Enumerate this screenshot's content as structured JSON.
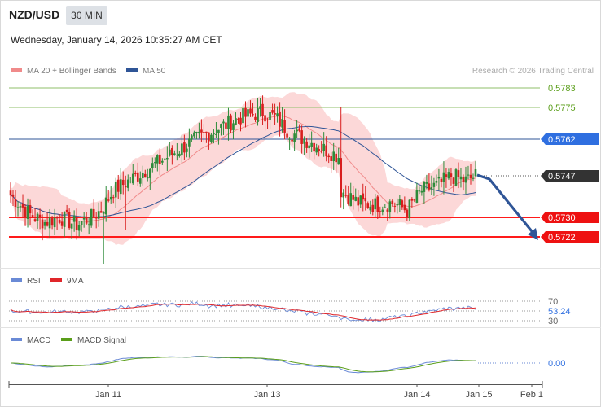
{
  "header": {
    "pair": "NZD/USD",
    "interval": "30 MIN",
    "datetime": "Wednesday, January 14, 2026 10:35:27 AM CET"
  },
  "legend": {
    "ma20_bb": "MA 20 + Bollinger Bands",
    "ma50": "MA 50",
    "rsi": "RSI",
    "rsi_ma": "9MA",
    "macd": "MACD",
    "macd_signal": "MACD Signal"
  },
  "copyright": "Research © 2026 Trading Central",
  "colors": {
    "up": "#2e8b3a",
    "down": "#d81e1e",
    "bb_fill": "#fcd8d8",
    "ma20": "#f08a8a",
    "ma50": "#2f5597",
    "target_line": "#8fbf6a",
    "key_level": "#2f5597",
    "support": "#ff1a1a",
    "arrow": "#2f5597",
    "rsi": "#6a8ad6",
    "rsi_ma": "#e0262a",
    "macd": "#6a8ad6",
    "macd_signal": "#5a9e1a"
  },
  "chart_data": [
    {
      "type": "candlestick",
      "title": "NZD/USD 30 MIN",
      "ylim": [
        0.5706,
        0.579
      ],
      "x_ticks": [
        "Jan 11",
        "Jan 13",
        "Jan 14",
        "Jan 15",
        "Feb 1"
      ],
      "price_levels": [
        {
          "value": 0.5783,
          "label": "0.5783",
          "kind": "target"
        },
        {
          "value": 0.5775,
          "label": "0.5775",
          "kind": "target"
        },
        {
          "value": 0.5762,
          "label": "0.5762",
          "kind": "pivot"
        },
        {
          "value": 0.573,
          "label": "0.5730",
          "kind": "support"
        },
        {
          "value": 0.5722,
          "label": "0.5722",
          "kind": "support"
        }
      ],
      "last_price": {
        "value": 0.5747,
        "label": "0.5747"
      },
      "scenario_arrow": {
        "from_price": 0.5747,
        "to_price": 0.5722
      },
      "series": [
        {
          "name": "MA 20 + Bollinger Bands",
          "kind": "band"
        },
        {
          "name": "MA 50",
          "kind": "line"
        }
      ],
      "close_anchors": [
        [
          0,
          0.5739
        ],
        [
          8,
          0.5731
        ],
        [
          14,
          0.5728
        ],
        [
          20,
          0.573
        ],
        [
          27,
          0.5727
        ],
        [
          33,
          0.573
        ],
        [
          37,
          0.5733
        ],
        [
          42,
          0.5741
        ],
        [
          50,
          0.5746
        ],
        [
          58,
          0.5751
        ],
        [
          66,
          0.5756
        ],
        [
          74,
          0.5761
        ],
        [
          84,
          0.5766
        ],
        [
          94,
          0.5771
        ],
        [
          103,
          0.5773
        ],
        [
          108,
          0.5771
        ],
        [
          114,
          0.5765
        ],
        [
          120,
          0.5762
        ],
        [
          124,
          0.576
        ],
        [
          130,
          0.5757
        ],
        [
          134,
          0.5755
        ],
        [
          135,
          0.5741
        ],
        [
          142,
          0.5736
        ],
        [
          150,
          0.5735
        ],
        [
          156,
          0.5736
        ],
        [
          162,
          0.5733
        ],
        [
          168,
          0.5741
        ],
        [
          174,
          0.5743
        ],
        [
          180,
          0.5747
        ],
        [
          186,
          0.5745
        ],
        [
          190,
          0.5747
        ]
      ]
    },
    {
      "type": "line",
      "title": "RSI",
      "ylim": [
        20,
        80
      ],
      "levels": [
        70,
        50,
        30
      ],
      "level_labels": [
        "70",
        "30"
      ],
      "last_value": "53.24",
      "series": [
        {
          "name": "RSI"
        },
        {
          "name": "9MA"
        }
      ]
    },
    {
      "type": "line",
      "title": "MACD",
      "zero_label": "0.00",
      "series": [
        {
          "name": "MACD"
        },
        {
          "name": "MACD Signal"
        }
      ]
    }
  ]
}
